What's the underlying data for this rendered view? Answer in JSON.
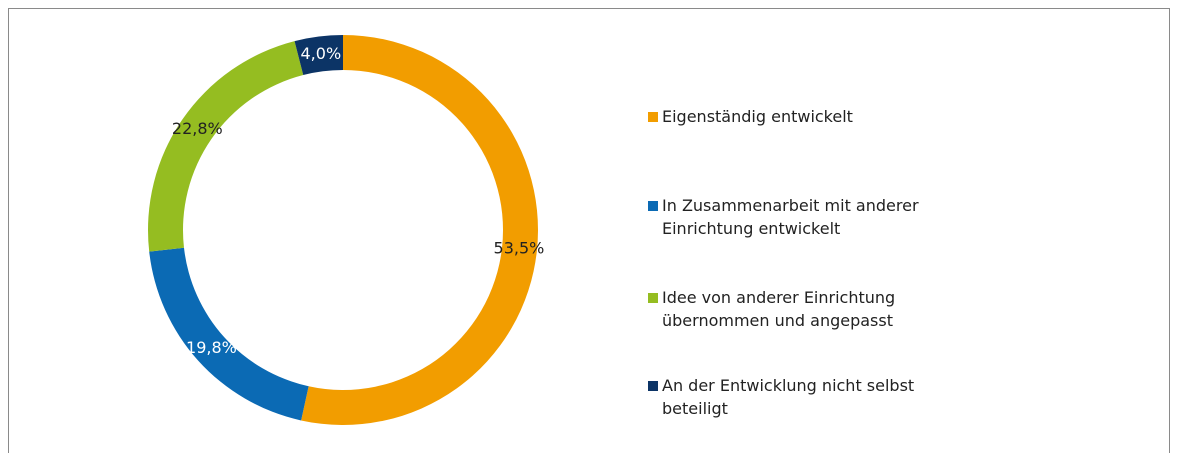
{
  "chart_data": {
    "type": "donut",
    "categories": [
      "Eigenständig entwickelt",
      "In Zusammenarbeit mit anderer Einrichtung entwickelt",
      "Idee von anderer Einrichtung übernommen und angepasst",
      "An der Entwicklung nicht selbst beteiligt"
    ],
    "values": [
      53.5,
      19.8,
      22.8,
      4.0
    ],
    "value_labels": [
      "53,5%",
      "19,8%",
      "22,8%",
      "4,0%"
    ],
    "colors": [
      "#f29d00",
      "#0b6ab4",
      "#95bd21",
      "#0c3466"
    ],
    "label_colors": [
      "#222222",
      "#ffffff",
      "#222222",
      "#ffffff"
    ],
    "legend": "right"
  }
}
